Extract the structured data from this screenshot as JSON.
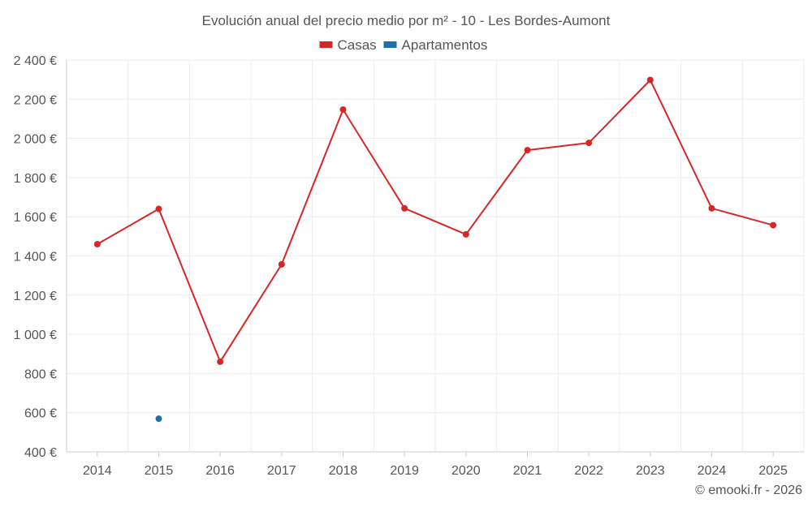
{
  "chart_data": {
    "type": "line",
    "title": "Evolución anual del precio medio por m² - 10 - Les Bordes-Aumont",
    "categories": [
      "2014",
      "2015",
      "2016",
      "2017",
      "2018",
      "2019",
      "2020",
      "2021",
      "2022",
      "2023",
      "2024",
      "2025"
    ],
    "y_ticks": [
      400,
      600,
      800,
      1000,
      1200,
      1400,
      1600,
      1800,
      2000,
      2200,
      2400
    ],
    "y_tick_labels": [
      "400 €",
      "600 €",
      "800 €",
      "1 000 €",
      "1 200 €",
      "1 400 €",
      "1 600 €",
      "1 800 €",
      "2 000 €",
      "2 200 €",
      "2 400 €"
    ],
    "ylim": [
      400,
      2400
    ],
    "series": [
      {
        "name": "Casas",
        "color": "#d62728",
        "values": [
          1460,
          1640,
          860,
          1357,
          2147,
          1643,
          1510,
          1940,
          1977,
          2298,
          1643,
          1557
        ]
      },
      {
        "name": "Apartamentos",
        "color": "#1f6fa8",
        "values": [
          null,
          569,
          null,
          null,
          null,
          null,
          null,
          null,
          null,
          null,
          null,
          null
        ]
      }
    ],
    "legend": "top-center",
    "grid": true
  },
  "credit": "© emooki.fr - 2026"
}
